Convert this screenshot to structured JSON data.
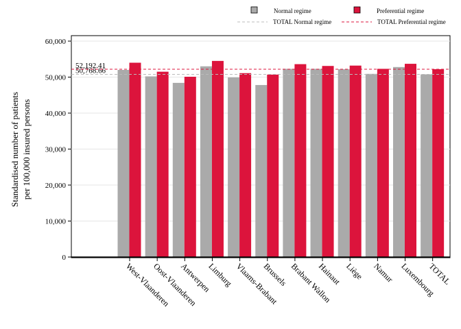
{
  "chart_data": {
    "type": "bar",
    "ylabel_lines": [
      "Standardised number of patients",
      "per 100,000 insured persons"
    ],
    "ylim": [
      0,
      60000
    ],
    "yticks": [
      0,
      10000,
      20000,
      30000,
      40000,
      50000,
      60000
    ],
    "ytick_labels": [
      "0",
      "10,000",
      "20,000",
      "30,000",
      "40,000",
      "50,000",
      "60,000"
    ],
    "grid": true,
    "legend_position": "top",
    "categories": [
      "West-Vlaanderen",
      "Oost-Vlaanderen",
      "Antwerpen",
      "Limburg",
      "Vlaams-Brabant",
      "Brussels",
      "Brabant Wallon",
      "Hainaut",
      "Liège",
      "Namur",
      "Luxembourg",
      "TOTAL"
    ],
    "series": [
      {
        "name": "Normal regime",
        "color": "#aaaaaa",
        "values": [
          52000,
          50200,
          48400,
          53000,
          49900,
          47800,
          52300,
          52300,
          52200,
          50900,
          52800,
          50768.66
        ]
      },
      {
        "name": "Preferential regime",
        "color": "#dc143c",
        "values": [
          54000,
          51500,
          50100,
          54500,
          51100,
          50700,
          53600,
          53100,
          53200,
          52300,
          53700,
          52192.41
        ]
      }
    ],
    "reference_lines": [
      {
        "name": "TOTAL Normal regime",
        "value": 50768.66,
        "label": "50,768.66",
        "color": "#bbbbbb",
        "style": "dashed"
      },
      {
        "name": "TOTAL Preferential regime",
        "value": 52192.41,
        "label": "52,192.41",
        "color": "#dc143c",
        "style": "dashed"
      }
    ]
  }
}
